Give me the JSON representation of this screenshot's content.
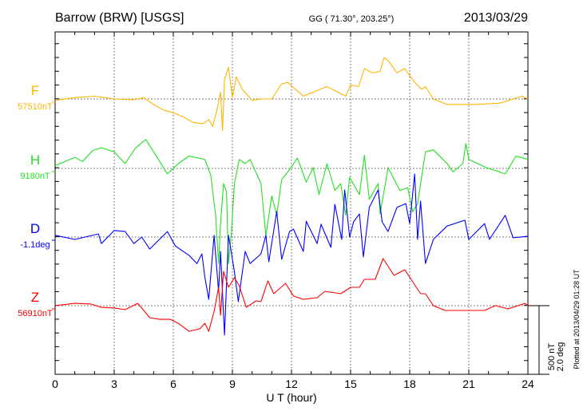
{
  "chart_data": {
    "type": "line",
    "title": "Barrow (BRW)  [USGS]",
    "coords": "GG ( 71.30°, 203.25°)",
    "date": "2013/03/29",
    "xlabel": "U T (hour)",
    "xlim": [
      0,
      24
    ],
    "xticks": [
      0,
      3,
      6,
      9,
      12,
      15,
      18,
      21,
      24
    ],
    "grid": true,
    "scale_bar": {
      "nT_label": "500 nT",
      "deg_label": "2.0 deg",
      "nT": 500,
      "deg": 2.0
    },
    "plotted_note": "Plotted at 2013/04/29 01:28 UT",
    "series": [
      {
        "name": "F",
        "baseline_label": "57510nT",
        "units": "nT",
        "color": "#ffb400",
        "deviation": [
          [
            0,
            -10
          ],
          [
            1,
            10
          ],
          [
            2,
            20
          ],
          [
            3,
            0
          ],
          [
            4,
            -5
          ],
          [
            4.5,
            10
          ],
          [
            5,
            -40
          ],
          [
            5.5,
            -80
          ],
          [
            6,
            -100
          ],
          [
            6.5,
            -130
          ],
          [
            7,
            -170
          ],
          [
            7.5,
            -180
          ],
          [
            7.8,
            -150
          ],
          [
            8,
            -200
          ],
          [
            8.2,
            -90
          ],
          [
            8.4,
            50
          ],
          [
            8.5,
            -230
          ],
          [
            8.6,
            140
          ],
          [
            8.8,
            230
          ],
          [
            9,
            10
          ],
          [
            9.2,
            160
          ],
          [
            9.5,
            70
          ],
          [
            10,
            -10
          ],
          [
            10.5,
            0
          ],
          [
            11,
            0
          ],
          [
            11.5,
            110
          ],
          [
            11.8,
            120
          ],
          [
            12.6,
            20
          ],
          [
            13.8,
            90
          ],
          [
            14.75,
            20
          ],
          [
            15,
            100
          ],
          [
            15.4,
            90
          ],
          [
            15.7,
            220
          ],
          [
            16.1,
            190
          ],
          [
            16.5,
            200
          ],
          [
            16.7,
            300
          ],
          [
            16.9,
            280
          ],
          [
            17.35,
            190
          ],
          [
            17.75,
            220
          ],
          [
            18.2,
            130
          ],
          [
            18.6,
            70
          ],
          [
            18.8,
            90
          ],
          [
            19.2,
            0
          ],
          [
            19.9,
            -40
          ],
          [
            21.25,
            -40
          ],
          [
            22.6,
            -30
          ],
          [
            23.7,
            20
          ],
          [
            24,
            0
          ]
        ]
      },
      {
        "name": "H",
        "baseline_label": "9180nT",
        "units": "nT",
        "color": "#22e022",
        "deviation": [
          [
            0,
            20
          ],
          [
            1,
            80
          ],
          [
            1.4,
            50
          ],
          [
            1.9,
            130
          ],
          [
            2.35,
            150
          ],
          [
            3,
            120
          ],
          [
            3.55,
            35
          ],
          [
            4.1,
            150
          ],
          [
            4.6,
            210
          ],
          [
            5.2,
            75
          ],
          [
            5.7,
            -40
          ],
          [
            6.25,
            35
          ],
          [
            6.8,
            90
          ],
          [
            7.6,
            65
          ],
          [
            7.9,
            -50
          ],
          [
            8.15,
            -340
          ],
          [
            8.3,
            -690
          ],
          [
            8.4,
            -400
          ],
          [
            8.55,
            -110
          ],
          [
            8.7,
            -170
          ],
          [
            8.8,
            -690
          ],
          [
            8.95,
            -460
          ],
          [
            9.1,
            -110
          ],
          [
            9.35,
            65
          ],
          [
            9.65,
            35
          ],
          [
            9.9,
            65
          ],
          [
            10.45,
            -110
          ],
          [
            10.7,
            -490
          ],
          [
            11,
            -200
          ],
          [
            11.25,
            -340
          ],
          [
            11.5,
            -80
          ],
          [
            11.9,
            -10
          ],
          [
            12.3,
            75
          ],
          [
            12.75,
            -100
          ],
          [
            13.1,
            5
          ],
          [
            13.4,
            -190
          ],
          [
            13.8,
            35
          ],
          [
            14.2,
            -160
          ],
          [
            14.5,
            -110
          ],
          [
            14.75,
            -340
          ],
          [
            14.95,
            -65
          ],
          [
            15.45,
            -190
          ],
          [
            15.7,
            95
          ],
          [
            15.95,
            -225
          ],
          [
            16.4,
            -110
          ],
          [
            16.5,
            -330
          ],
          [
            16.9,
            5
          ],
          [
            17.5,
            -160
          ],
          [
            17.9,
            -140
          ],
          [
            18.15,
            -315
          ],
          [
            18.4,
            -255
          ],
          [
            18.8,
            120
          ],
          [
            19.2,
            135
          ],
          [
            19.9,
            35
          ],
          [
            20.2,
            -25
          ],
          [
            20.7,
            35
          ],
          [
            20.85,
            180
          ],
          [
            21,
            65
          ],
          [
            21.9,
            5
          ],
          [
            22.85,
            -40
          ],
          [
            23.4,
            90
          ],
          [
            24,
            65
          ]
        ]
      },
      {
        "name": "D",
        "baseline_label": "-1.1deg",
        "units": "deg",
        "color": "#0000ff",
        "deviation": [
          [
            0,
            0.05
          ],
          [
            1,
            -0.07
          ],
          [
            2.2,
            0.09
          ],
          [
            2.35,
            -0.19
          ],
          [
            3,
            0.19
          ],
          [
            3.55,
            0.16
          ],
          [
            4,
            -0.19
          ],
          [
            4.4,
            0
          ],
          [
            4.8,
            -0.35
          ],
          [
            5.7,
            0.16
          ],
          [
            6.1,
            -0.26
          ],
          [
            6.8,
            -0.53
          ],
          [
            7.2,
            -0.77
          ],
          [
            7.45,
            -0.49
          ],
          [
            7.6,
            -1.16
          ],
          [
            7.8,
            -1.81
          ],
          [
            8.07,
            0.05
          ],
          [
            8.3,
            -1.58
          ],
          [
            8.4,
            -0.42
          ],
          [
            8.6,
            -2.85
          ],
          [
            8.8,
            0.05
          ],
          [
            9.1,
            -1.0
          ],
          [
            9.3,
            -1.88
          ],
          [
            9.65,
            -0.42
          ],
          [
            9.9,
            -0.77
          ],
          [
            10.45,
            -0.49
          ],
          [
            10.7,
            0.05
          ],
          [
            10.85,
            -0.72
          ],
          [
            11.25,
            0.74
          ],
          [
            11.5,
            -0.65
          ],
          [
            11.9,
            0.16
          ],
          [
            12.1,
            0.23
          ],
          [
            12.6,
            -0.42
          ],
          [
            12.75,
            0.46
          ],
          [
            13.3,
            -0.19
          ],
          [
            13.5,
            0.37
          ],
          [
            14,
            -0.3
          ],
          [
            14.2,
            0.95
          ],
          [
            14.55,
            -0.07
          ],
          [
            14.7,
            1.37
          ],
          [
            14.95,
            0
          ],
          [
            15.15,
            0.44
          ],
          [
            15.45,
            0.67
          ],
          [
            15.65,
            -0.58
          ],
          [
            15.95,
            0.86
          ],
          [
            16.4,
            1.37
          ],
          [
            16.6,
            0.44
          ],
          [
            16.9,
            0.16
          ],
          [
            17.35,
            0.86
          ],
          [
            17.8,
            0.97
          ],
          [
            18,
            0.39
          ],
          [
            18.25,
            1.83
          ],
          [
            18.4,
            -0.07
          ],
          [
            18.55,
            1.04
          ],
          [
            18.8,
            -0.77
          ],
          [
            19.2,
            -0.07
          ],
          [
            19.9,
            0.32
          ],
          [
            20.8,
            0.49
          ],
          [
            21,
            -0.07
          ],
          [
            21.8,
            0.39
          ],
          [
            22.05,
            -0.07
          ],
          [
            22.85,
            0.63
          ],
          [
            23.25,
            -0.02
          ],
          [
            24,
            0.02
          ]
        ]
      },
      {
        "name": "Z",
        "baseline_label": "56910nT",
        "units": "nT",
        "color": "#ff0000",
        "deviation": [
          [
            0,
            0
          ],
          [
            1,
            17
          ],
          [
            1.8,
            12
          ],
          [
            2.35,
            -12
          ],
          [
            3,
            -17
          ],
          [
            3.55,
            -29
          ],
          [
            4.2,
            17
          ],
          [
            4.8,
            -87
          ],
          [
            5.3,
            -99
          ],
          [
            5.85,
            -99
          ],
          [
            6.25,
            -128
          ],
          [
            6.8,
            -186
          ],
          [
            7.35,
            -168
          ],
          [
            7.6,
            -128
          ],
          [
            7.8,
            -186
          ],
          [
            8.07,
            -41
          ],
          [
            8.3,
            133
          ],
          [
            8.4,
            -70
          ],
          [
            8.55,
            249
          ],
          [
            8.8,
            133
          ],
          [
            9.1,
            203
          ],
          [
            9.35,
            145
          ],
          [
            9.7,
            -12
          ],
          [
            10.2,
            35
          ],
          [
            10.45,
            29
          ],
          [
            10.8,
            180
          ],
          [
            11.1,
            87
          ],
          [
            11.7,
            162
          ],
          [
            12.1,
            70
          ],
          [
            12.6,
            46
          ],
          [
            13.3,
            58
          ],
          [
            13.7,
            104
          ],
          [
            14.5,
            87
          ],
          [
            15,
            133
          ],
          [
            15.45,
            133
          ],
          [
            15.7,
            191
          ],
          [
            16.25,
            191
          ],
          [
            16.65,
            342
          ],
          [
            17.2,
            220
          ],
          [
            17.75,
            261
          ],
          [
            18.15,
            174
          ],
          [
            18.55,
            87
          ],
          [
            18.8,
            87
          ],
          [
            19.2,
            0
          ],
          [
            19.8,
            -35
          ],
          [
            20.9,
            -35
          ],
          [
            21.8,
            -35
          ],
          [
            22.35,
            0
          ],
          [
            23,
            -23
          ],
          [
            23.85,
            17
          ],
          [
            24,
            0
          ]
        ]
      }
    ]
  }
}
